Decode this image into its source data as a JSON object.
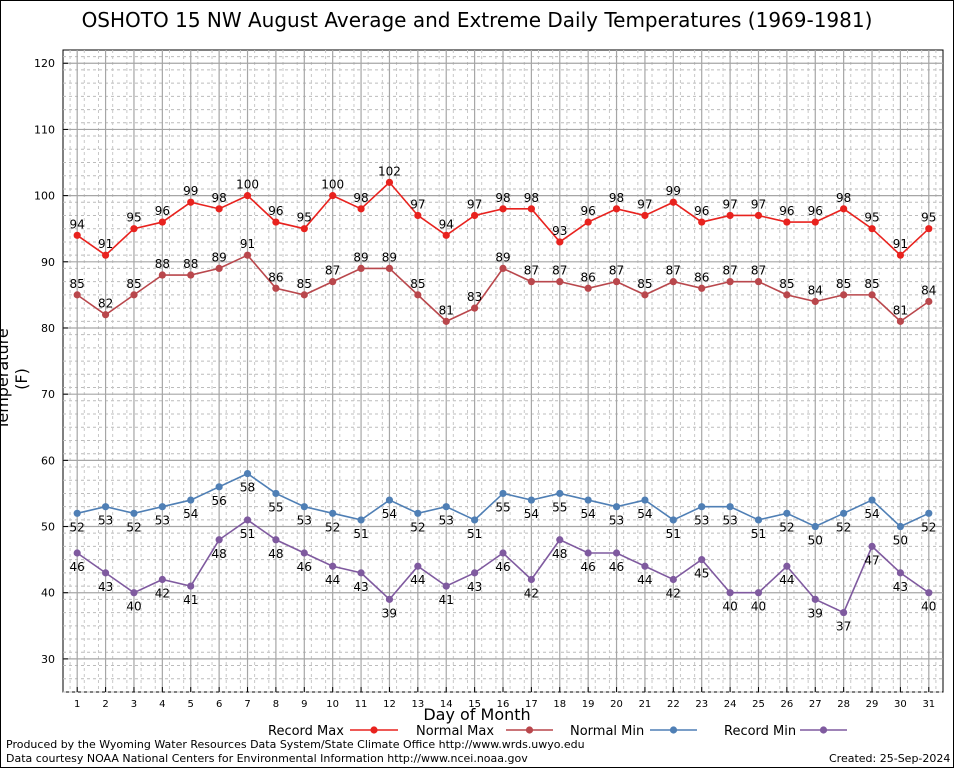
{
  "chart_data": {
    "type": "line",
    "title": "OSHOTO 15 NW August Average and Extreme Daily Temperatures (1969-1981)",
    "xlabel": "Day of Month",
    "ylabel": "Temperature (F)",
    "ylim": [
      25,
      122
    ],
    "yticks": [
      30,
      40,
      50,
      60,
      70,
      80,
      90,
      100,
      110,
      120
    ],
    "x": [
      1,
      2,
      3,
      4,
      5,
      6,
      7,
      8,
      9,
      10,
      11,
      12,
      13,
      14,
      15,
      16,
      17,
      18,
      19,
      20,
      21,
      22,
      23,
      24,
      25,
      26,
      27,
      28,
      29,
      30,
      31
    ],
    "grid": true,
    "legend_position": "bottom",
    "series": [
      {
        "name": "Record Max",
        "color": "#e8221e",
        "values": [
          94,
          91,
          95,
          96,
          99,
          98,
          100,
          96,
          95,
          100,
          98,
          102,
          97,
          94,
          97,
          98,
          98,
          93,
          96,
          98,
          97,
          99,
          96,
          97,
          97,
          96,
          96,
          98,
          95,
          91,
          95
        ]
      },
      {
        "name": "Normal Max",
        "color": "#b9474c",
        "values": [
          85,
          82,
          85,
          88,
          88,
          89,
          91,
          86,
          85,
          87,
          89,
          89,
          85,
          81,
          83,
          89,
          87,
          87,
          86,
          87,
          85,
          87,
          86,
          87,
          87,
          85,
          84,
          85,
          85,
          81,
          84
        ]
      },
      {
        "name": "Normal Min",
        "color": "#4f7fb5",
        "values": [
          52,
          53,
          52,
          53,
          54,
          56,
          58,
          55,
          53,
          52,
          51,
          54,
          52,
          53,
          51,
          55,
          54,
          55,
          54,
          53,
          54,
          51,
          53,
          53,
          51,
          52,
          50,
          52,
          54,
          50,
          52
        ]
      },
      {
        "name": "Record Min",
        "color": "#7f5a9f",
        "values": [
          46,
          43,
          40,
          42,
          41,
          48,
          51,
          48,
          46,
          44,
          43,
          39,
          44,
          41,
          43,
          46,
          42,
          48,
          46,
          46,
          44,
          42,
          45,
          40,
          40,
          44,
          39,
          37,
          47,
          43,
          40
        ]
      }
    ]
  },
  "footer": {
    "produced_by": "Produced by the Wyoming Water Resources Data System/State Climate Office http://www.wrds.uwyo.edu",
    "courtesy": "Data courtesy NOAA National Centers for Environmental Information http://www.ncei.noaa.gov",
    "created": "Created:  25-Sep-2024"
  }
}
